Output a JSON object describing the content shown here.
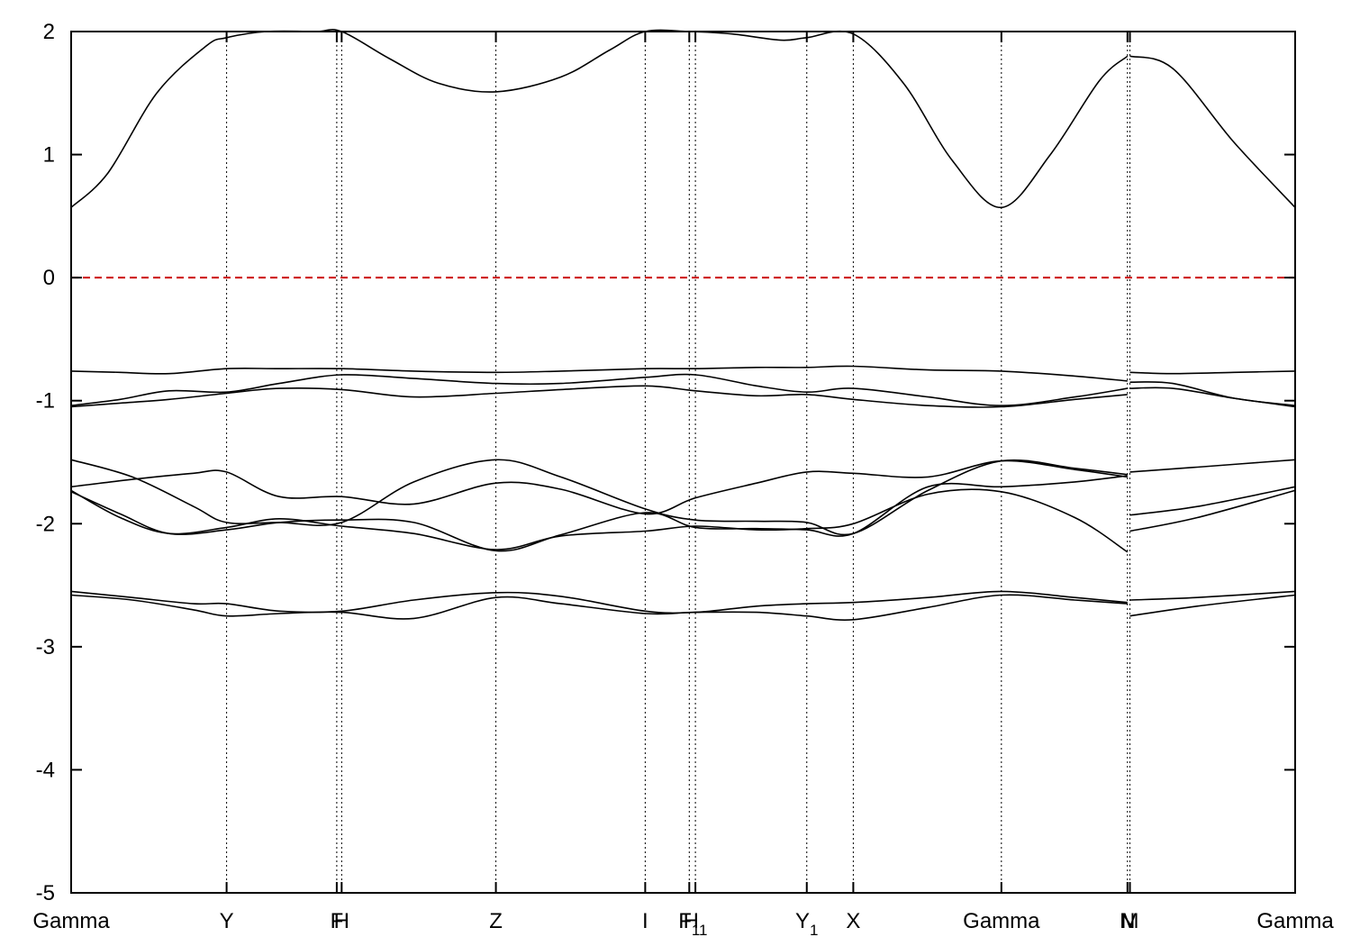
{
  "chart_data": {
    "type": "line",
    "title": "",
    "xlabel": "",
    "ylabel": "",
    "ylim": [
      -5,
      2
    ],
    "yticks": [
      2,
      1,
      0,
      -1,
      -2,
      -3,
      -4,
      -5
    ],
    "fermi_level": 0,
    "fermi_color": "#cc0000",
    "grid": false,
    "kpoints": [
      {
        "label": "Gamma",
        "sub": "",
        "x": 0.0
      },
      {
        "label": "Y",
        "sub": "",
        "x": 1.27
      },
      {
        "label": "F",
        "sub": "",
        "x": 2.17
      },
      {
        "label": "H",
        "sub": "",
        "x": 2.21
      },
      {
        "label": "Z",
        "sub": "",
        "x": 3.47
      },
      {
        "label": "I",
        "sub": "",
        "x": 4.69
      },
      {
        "label": "F",
        "sub": "1",
        "x": 5.05
      },
      {
        "label": "H",
        "sub": "1",
        "x": 5.1
      },
      {
        "label": "Y",
        "sub": "1",
        "x": 6.01
      },
      {
        "label": "X",
        "sub": "",
        "x": 6.39
      },
      {
        "label": "Gamma",
        "sub": "",
        "x": 7.6
      },
      {
        "label": "N",
        "sub": "",
        "x": 8.63
      },
      {
        "label": "M",
        "sub": "",
        "x": 8.65
      },
      {
        "label": "Gamma",
        "sub": "",
        "x": 10.0
      }
    ],
    "series": [
      {
        "x": [
          0,
          0.3,
          0.7,
          1.1,
          1.27,
          1.6,
          2.0,
          2.21,
          2.6,
          3.0,
          3.47,
          4.0,
          4.4,
          4.69,
          5.05,
          5.4,
          5.8,
          6.01,
          6.39,
          6.8,
          7.2,
          7.6,
          8.0,
          8.4,
          8.63,
          8.65,
          9.0,
          9.5,
          10.0
        ],
        "y": [
          0.57,
          0.85,
          1.5,
          1.88,
          1.95,
          2.0,
          2.02,
          2.0,
          1.78,
          1.58,
          1.51,
          1.63,
          1.85,
          2.03,
          2.03,
          1.98,
          1.93,
          1.95,
          1.98,
          1.58,
          0.95,
          0.57,
          1.0,
          1.6,
          1.8,
          1.8,
          1.7,
          1.1,
          0.57
        ]
      },
      {
        "x": [
          0,
          0.4,
          0.8,
          1.27,
          1.7,
          2.21,
          2.8,
          3.47,
          4.0,
          4.69,
          5.1,
          5.6,
          6.01,
          6.39,
          7.0,
          7.6,
          8.2,
          8.63,
          8.65,
          9.0,
          9.5,
          10.0
        ],
        "y": [
          -0.76,
          -0.77,
          -0.78,
          -0.74,
          -0.74,
          -0.74,
          -0.76,
          -0.77,
          -0.76,
          -0.74,
          -0.74,
          -0.73,
          -0.73,
          -0.72,
          -0.75,
          -0.76,
          -0.8,
          -0.84,
          -0.77,
          -0.78,
          -0.77,
          -0.76
        ]
      },
      {
        "x": [
          0,
          0.4,
          0.8,
          1.27,
          1.7,
          2.21,
          2.8,
          3.47,
          4.0,
          4.69,
          5.1,
          5.6,
          6.01,
          6.39,
          7.0,
          7.6,
          8.2,
          8.63,
          8.65,
          9.0,
          9.5,
          10.0
        ],
        "y": [
          -1.04,
          -0.99,
          -0.92,
          -0.93,
          -0.86,
          -0.79,
          -0.82,
          -0.86,
          -0.86,
          -0.81,
          -0.79,
          -0.88,
          -0.93,
          -0.9,
          -0.97,
          -1.04,
          -0.97,
          -0.9,
          -0.9,
          -0.9,
          -0.98,
          -1.05
        ]
      },
      {
        "x": [
          0,
          0.4,
          0.8,
          1.27,
          1.7,
          2.21,
          2.8,
          3.47,
          4.0,
          4.69,
          5.1,
          5.6,
          6.01,
          6.39,
          7.0,
          7.6,
          8.2,
          8.63,
          8.65,
          9.0,
          9.5,
          10.0
        ],
        "y": [
          -1.05,
          -1.02,
          -0.99,
          -0.94,
          -0.9,
          -0.91,
          -0.97,
          -0.94,
          -0.91,
          -0.88,
          -0.92,
          -0.96,
          -0.95,
          -0.99,
          -1.04,
          -1.05,
          -0.99,
          -0.95,
          -0.85,
          -0.86,
          -0.98,
          -1.04
        ]
      },
      {
        "x": [
          0,
          0.5,
          1.0,
          1.27,
          1.7,
          2.21,
          2.8,
          3.47,
          4.0,
          4.69,
          5.1,
          5.6,
          6.01,
          6.39,
          7.0,
          7.6,
          8.2,
          8.63,
          8.65,
          9.2,
          10.0
        ],
        "y": [
          -1.48,
          -1.62,
          -1.86,
          -1.99,
          -1.99,
          -1.99,
          -1.66,
          -1.48,
          -1.62,
          -1.88,
          -1.97,
          -1.98,
          -1.99,
          -2.08,
          -1.73,
          -1.49,
          -1.55,
          -1.6,
          -1.58,
          -1.54,
          -1.48
        ]
      },
      {
        "x": [
          0,
          0.5,
          1.0,
          1.27,
          1.7,
          2.21,
          2.8,
          3.47,
          4.0,
          4.69,
          5.1,
          5.6,
          6.01,
          6.39,
          7.0,
          7.6,
          8.2,
          8.63,
          8.65,
          9.2,
          10.0
        ],
        "y": [
          -1.7,
          -1.64,
          -1.59,
          -1.58,
          -1.78,
          -1.78,
          -1.84,
          -1.67,
          -1.72,
          -1.92,
          -1.79,
          -1.67,
          -1.58,
          -1.59,
          -1.62,
          -1.49,
          -1.56,
          -1.62,
          -1.93,
          -1.86,
          -1.7
        ]
      },
      {
        "x": [
          0,
          0.4,
          0.8,
          1.27,
          1.7,
          2.21,
          2.8,
          3.47,
          4.0,
          4.69,
          5.1,
          5.6,
          6.01,
          6.39,
          7.0,
          7.6,
          8.2,
          8.63,
          8.65,
          9.2,
          10.0
        ],
        "y": [
          -1.73,
          -1.95,
          -2.08,
          -2.03,
          -1.96,
          -2.02,
          -2.08,
          -2.21,
          -2.1,
          -2.06,
          -2.02,
          -2.05,
          -2.04,
          -2.0,
          -1.76,
          -1.74,
          -1.95,
          -2.23,
          -2.06,
          -1.95,
          -1.73
        ]
      },
      {
        "x": [
          0,
          0.4,
          0.8,
          1.27,
          1.7,
          2.21,
          2.8,
          3.47,
          4.0,
          4.69,
          5.1,
          5.6,
          6.01,
          6.39,
          7.0,
          7.6,
          8.2,
          8.63
        ],
        "y": [
          -1.74,
          -1.92,
          -2.08,
          -2.05,
          -1.99,
          -1.97,
          -1.99,
          -2.22,
          -2.09,
          -1.91,
          -2.03,
          -2.04,
          -2.05,
          -2.08,
          -1.7,
          -1.7,
          -1.66,
          -1.61
        ]
      },
      {
        "x": [
          0,
          0.5,
          1.0,
          1.27,
          1.7,
          2.21,
          2.8,
          3.47,
          4.0,
          4.69,
          5.1,
          5.6,
          6.01,
          6.39,
          7.0,
          7.6,
          8.2,
          8.63,
          8.65,
          9.2,
          10.0
        ],
        "y": [
          -2.55,
          -2.6,
          -2.65,
          -2.65,
          -2.71,
          -2.71,
          -2.62,
          -2.56,
          -2.59,
          -2.71,
          -2.72,
          -2.67,
          -2.65,
          -2.64,
          -2.6,
          -2.55,
          -2.6,
          -2.64,
          -2.62,
          -2.6,
          -2.55
        ]
      },
      {
        "x": [
          0,
          0.5,
          1.0,
          1.27,
          1.7,
          2.21,
          2.8,
          3.47,
          4.0,
          4.69,
          5.1,
          5.6,
          6.01,
          6.39,
          7.0,
          7.6,
          8.2,
          8.63,
          8.65,
          9.2,
          10.0
        ],
        "y": [
          -2.58,
          -2.62,
          -2.7,
          -2.75,
          -2.73,
          -2.72,
          -2.77,
          -2.6,
          -2.65,
          -2.73,
          -2.72,
          -2.72,
          -2.75,
          -2.78,
          -2.68,
          -2.58,
          -2.62,
          -2.65,
          -2.75,
          -2.67,
          -2.58
        ]
      }
    ]
  }
}
